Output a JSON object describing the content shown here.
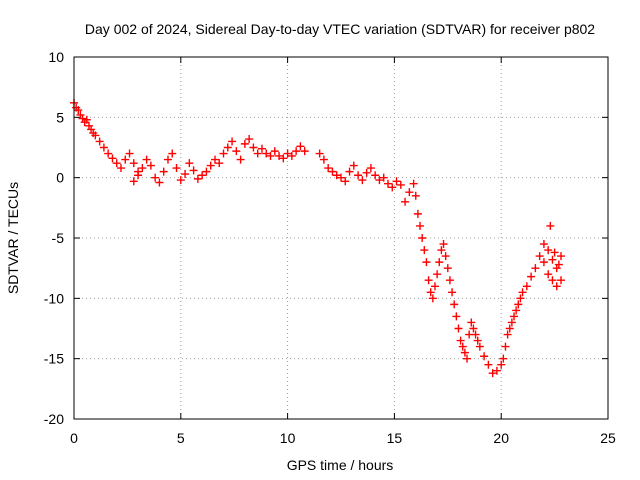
{
  "chart_data": {
    "type": "scatter",
    "title": "Day 002 of 2024, Sidereal Day-to-day VTEC variation (SDTVAR) for receiver p802",
    "xlabel": "GPS time / hours",
    "ylabel": "SDTVAR / TECUs",
    "xlim": [
      0,
      25
    ],
    "ylim": [
      -20,
      10
    ],
    "x_ticks": [
      0,
      5,
      10,
      15,
      20,
      25
    ],
    "y_ticks": [
      -20,
      -15,
      -10,
      -5,
      0,
      5,
      10
    ],
    "grid": true,
    "marker": "+",
    "marker_color": "#ff0000",
    "series": [
      {
        "name": "SDTVAR",
        "x": [
          0.0,
          0.1,
          0.2,
          0.3,
          0.4,
          0.5,
          0.6,
          0.7,
          0.8,
          0.9,
          1.0,
          1.2,
          1.4,
          1.6,
          1.8,
          2.0,
          2.2,
          2.4,
          2.6,
          2.8,
          3.0,
          2.8,
          3.0,
          3.2,
          3.4,
          3.6,
          3.8,
          4.0,
          4.2,
          4.4,
          4.6,
          4.8,
          5.0,
          5.2,
          5.4,
          5.6,
          5.8,
          6.0,
          6.2,
          6.4,
          6.6,
          6.8,
          7.0,
          7.2,
          7.4,
          7.6,
          7.8,
          8.0,
          8.2,
          8.4,
          8.6,
          8.8,
          9.0,
          9.2,
          9.4,
          9.6,
          9.8,
          10.0,
          10.2,
          10.4,
          10.6,
          10.8,
          11.5,
          11.7,
          11.9,
          12.1,
          12.3,
          12.5,
          12.7,
          12.9,
          13.1,
          13.3,
          13.5,
          13.7,
          13.9,
          14.1,
          14.3,
          14.5,
          14.7,
          14.9,
          15.1,
          15.3,
          15.5,
          15.7,
          15.9,
          16.0,
          16.1,
          16.2,
          16.3,
          16.4,
          16.5,
          16.6,
          16.7,
          16.8,
          16.9,
          17.0,
          17.1,
          17.2,
          17.3,
          17.4,
          17.5,
          17.6,
          17.7,
          17.8,
          17.9,
          18.0,
          18.1,
          18.2,
          18.3,
          18.4,
          18.5,
          18.6,
          18.7,
          18.8,
          18.9,
          19.0,
          19.2,
          19.4,
          19.6,
          19.8,
          20.0,
          20.1,
          20.2,
          20.3,
          20.4,
          20.5,
          20.6,
          20.7,
          20.8,
          20.9,
          21.0,
          21.2,
          21.4,
          21.6,
          21.8,
          22.0,
          22.2,
          22.4,
          22.6,
          22.8,
          22.0,
          22.2,
          22.4,
          22.6,
          22.8,
          22.3,
          22.5,
          22.7
        ],
        "y": [
          6.2,
          5.8,
          5.6,
          5.2,
          4.9,
          4.6,
          4.8,
          4.3,
          4.0,
          3.7,
          3.5,
          3.0,
          2.5,
          2.0,
          1.6,
          1.2,
          0.8,
          1.5,
          2.0,
          1.2,
          0.5,
          -0.3,
          0.2,
          0.8,
          1.5,
          1.0,
          0.0,
          -0.4,
          0.5,
          1.5,
          2.0,
          0.8,
          -0.2,
          0.3,
          1.2,
          0.6,
          -0.1,
          0.2,
          0.5,
          1.0,
          1.5,
          1.2,
          2.0,
          2.5,
          3.0,
          2.2,
          1.5,
          2.8,
          3.2,
          2.5,
          2.0,
          2.4,
          2.0,
          1.8,
          2.2,
          1.8,
          1.6,
          2.0,
          1.8,
          2.2,
          2.6,
          2.2,
          2.0,
          1.5,
          0.8,
          0.5,
          0.2,
          0.0,
          -0.3,
          0.5,
          1.0,
          0.2,
          -0.2,
          0.4,
          0.8,
          0.2,
          -0.2,
          0.0,
          -0.5,
          -0.8,
          -0.3,
          -0.6,
          -2.0,
          -1.2,
          -0.5,
          -1.5,
          -3.0,
          -4.0,
          -5.0,
          -6.0,
          -7.0,
          -8.5,
          -9.5,
          -10.0,
          -9.0,
          -8.0,
          -7.0,
          -6.0,
          -5.5,
          -6.5,
          -7.5,
          -8.5,
          -9.5,
          -10.5,
          -11.5,
          -12.5,
          -13.5,
          -14.0,
          -14.5,
          -15.0,
          -13.0,
          -12.0,
          -12.5,
          -13.0,
          -13.5,
          -14.0,
          -14.8,
          -15.5,
          -16.2,
          -16.0,
          -15.5,
          -15.0,
          -14.0,
          -13.0,
          -12.5,
          -12.0,
          -11.5,
          -11.0,
          -10.5,
          -10.0,
          -9.5,
          -9.0,
          -8.2,
          -7.5,
          -6.5,
          -7.0,
          -8.0,
          -8.5,
          -9.0,
          -8.5,
          -5.5,
          -6.0,
          -6.8,
          -7.5,
          -6.5,
          -4.0,
          -6.2,
          -7.2
        ]
      }
    ]
  }
}
